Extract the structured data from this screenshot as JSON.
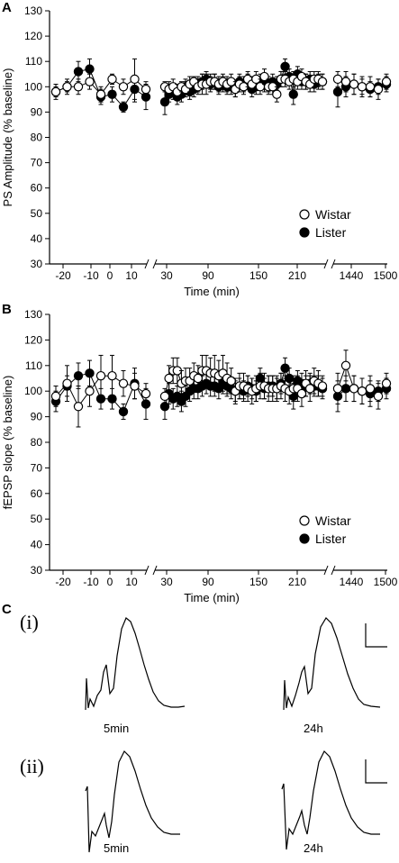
{
  "panels": {
    "a": "A",
    "b": "B",
    "c": "C"
  },
  "chart_data": [
    {
      "type": "scatter",
      "panel": "A",
      "ylabel": "PS Amplitude (% baseline)",
      "xlabel": "Time (min)",
      "ylim": [
        30,
        130
      ],
      "yticks": [
        "30",
        "40",
        "50",
        "60",
        "70",
        "80",
        "90",
        "100",
        "110",
        "120",
        "130"
      ],
      "xticks": [
        "-20",
        "-10",
        "0",
        "10",
        "30",
        "90",
        "150",
        "210",
        "1440",
        "1500"
      ],
      "axis_breaks": true,
      "legend_position": "bottom-right",
      "series": [
        {
          "name": "Wistar",
          "marker": "open-circle",
          "x": [
            -25,
            -20,
            -15,
            -10,
            -5,
            0,
            5,
            10,
            15,
            30,
            35,
            40,
            45,
            50,
            55,
            60,
            65,
            70,
            75,
            80,
            85,
            90,
            95,
            100,
            105,
            110,
            115,
            120,
            125,
            130,
            135,
            140,
            145,
            150,
            155,
            160,
            165,
            170,
            175,
            180,
            185,
            190,
            195,
            200,
            205,
            210,
            215,
            220,
            1440,
            1450,
            1460,
            1470,
            1480,
            1490,
            1500
          ],
          "values": [
            98,
            100,
            100,
            102,
            97,
            103,
            100,
            103,
            99,
            100,
            99,
            100,
            98,
            100,
            99,
            101,
            102,
            100,
            101,
            101,
            102,
            102,
            101,
            102,
            101,
            102,
            99,
            101,
            100,
            103,
            101,
            103,
            100,
            104,
            100,
            100,
            97,
            103,
            103,
            102,
            103,
            102,
            104,
            102,
            101,
            103,
            103,
            102,
            103,
            102,
            101,
            100,
            100,
            99,
            102
          ],
          "errors": [
            2,
            2,
            3,
            3,
            3,
            2,
            3,
            8,
            3,
            2,
            3,
            3,
            3,
            2,
            3,
            3,
            2,
            3,
            4,
            4,
            3,
            3,
            3,
            3,
            3,
            3,
            3,
            3,
            3,
            3,
            3,
            3,
            3,
            3,
            3,
            3,
            3,
            3,
            3,
            3,
            3,
            3,
            3,
            3,
            3,
            3,
            3,
            3,
            3,
            4,
            4,
            4,
            4,
            4,
            3
          ]
        },
        {
          "name": "Lister",
          "marker": "filled-circle",
          "x": [
            -25,
            -20,
            -15,
            -10,
            -5,
            0,
            5,
            10,
            15,
            30,
            35,
            40,
            45,
            50,
            55,
            60,
            65,
            70,
            75,
            80,
            85,
            90,
            95,
            100,
            105,
            110,
            115,
            120,
            125,
            130,
            135,
            140,
            145,
            150,
            155,
            160,
            165,
            170,
            175,
            180,
            185,
            190,
            195,
            200,
            205,
            210,
            215,
            220,
            1440,
            1450,
            1460,
            1470,
            1480,
            1490,
            1500
          ],
          "values": [
            98,
            100,
            106,
            107,
            96,
            97,
            92,
            99,
            96,
            94,
            97,
            98,
            96,
            97,
            100,
            98,
            99,
            101,
            102,
            103,
            101,
            102,
            100,
            101,
            100,
            100,
            99,
            102,
            101,
            102,
            99,
            100,
            102,
            101,
            101,
            102,
            101,
            103,
            108,
            104,
            97,
            105,
            102,
            102,
            103,
            101,
            102,
            102,
            98,
            100,
            101,
            100,
            99,
            100,
            101
          ],
          "errors": [
            3,
            3,
            4,
            4,
            3,
            3,
            2,
            5,
            5,
            5,
            3,
            3,
            3,
            3,
            3,
            3,
            3,
            3,
            3,
            3,
            3,
            3,
            3,
            3,
            3,
            3,
            3,
            3,
            3,
            3,
            3,
            3,
            3,
            3,
            3,
            3,
            3,
            3,
            3,
            3,
            4,
            3,
            3,
            3,
            3,
            3,
            3,
            3,
            6,
            4,
            4,
            3,
            3,
            3,
            3
          ]
        }
      ]
    },
    {
      "type": "scatter",
      "panel": "B",
      "ylabel": "fEPSP slope (% baseline)",
      "xlabel": "Time (min)",
      "ylim": [
        30,
        130
      ],
      "yticks": [
        "30",
        "40",
        "50",
        "60",
        "70",
        "80",
        "90",
        "100",
        "110",
        "120",
        "130"
      ],
      "xticks": [
        "-20",
        "-10",
        "0",
        "10",
        "30",
        "90",
        "150",
        "210",
        "1440",
        "1500"
      ],
      "axis_breaks": true,
      "legend_position": "bottom-right",
      "series": [
        {
          "name": "Wistar",
          "marker": "open-circle",
          "x": [
            -25,
            -20,
            -15,
            -10,
            -5,
            0,
            5,
            10,
            15,
            30,
            35,
            40,
            45,
            50,
            55,
            60,
            65,
            70,
            75,
            80,
            85,
            90,
            95,
            100,
            105,
            110,
            115,
            120,
            125,
            130,
            135,
            140,
            145,
            150,
            155,
            160,
            165,
            170,
            175,
            180,
            185,
            190,
            195,
            200,
            205,
            210,
            215,
            220,
            1440,
            1450,
            1460,
            1470,
            1480,
            1490,
            1500
          ],
          "values": [
            98,
            103,
            94,
            100,
            106,
            106,
            103,
            102,
            99,
            98,
            105,
            108,
            108,
            103,
            104,
            104,
            106,
            105,
            108,
            108,
            107,
            107,
            106,
            107,
            105,
            104,
            100,
            102,
            102,
            101,
            100,
            101,
            102,
            102,
            101,
            101,
            101,
            102,
            101,
            100,
            101,
            101,
            99,
            103,
            101,
            104,
            103,
            102,
            101,
            110,
            101,
            100,
            101,
            98,
            103
          ],
          "errors": [
            4,
            7,
            8,
            6,
            8,
            8,
            5,
            5,
            4,
            3,
            5,
            5,
            5,
            5,
            5,
            5,
            5,
            5,
            6,
            6,
            6,
            7,
            6,
            7,
            6,
            5,
            5,
            5,
            5,
            5,
            5,
            5,
            5,
            5,
            5,
            5,
            5,
            5,
            5,
            5,
            5,
            5,
            5,
            5,
            5,
            5,
            5,
            4,
            6,
            6,
            5,
            5,
            5,
            5,
            4
          ]
        },
        {
          "name": "Lister",
          "marker": "filled-circle",
          "x": [
            -25,
            -20,
            -15,
            -10,
            -5,
            0,
            5,
            10,
            15,
            30,
            35,
            40,
            45,
            50,
            55,
            60,
            65,
            70,
            75,
            80,
            85,
            90,
            95,
            100,
            105,
            110,
            115,
            120,
            125,
            130,
            135,
            140,
            145,
            150,
            155,
            160,
            165,
            170,
            175,
            180,
            185,
            190,
            195,
            200,
            205,
            210,
            215,
            220,
            1440,
            1450,
            1460,
            1470,
            1480,
            1490,
            1500
          ],
          "values": [
            96,
            102,
            106,
            107,
            97,
            97,
            92,
            103,
            95,
            94,
            99,
            97,
            98,
            96,
            98,
            100,
            101,
            101,
            102,
            103,
            102,
            102,
            101,
            103,
            102,
            101,
            100,
            101,
            100,
            102,
            101,
            100,
            105,
            101,
            102,
            102,
            101,
            103,
            109,
            105,
            98,
            104,
            103,
            102,
            103,
            102,
            102,
            101,
            98,
            101,
            101,
            100,
            99,
            100,
            101
          ],
          "errors": [
            4,
            4,
            5,
            5,
            4,
            4,
            3,
            6,
            6,
            5,
            4,
            4,
            4,
            4,
            4,
            4,
            4,
            4,
            4,
            4,
            4,
            4,
            4,
            4,
            4,
            4,
            4,
            4,
            4,
            4,
            4,
            4,
            4,
            4,
            4,
            4,
            4,
            4,
            4,
            4,
            5,
            4,
            4,
            4,
            4,
            4,
            4,
            4,
            6,
            5,
            5,
            5,
            5,
            4,
            4
          ]
        }
      ]
    }
  ],
  "traces": {
    "row_i": "(i)",
    "row_ii": "(ii)",
    "label_5min": "5min",
    "label_24h": "24h"
  }
}
